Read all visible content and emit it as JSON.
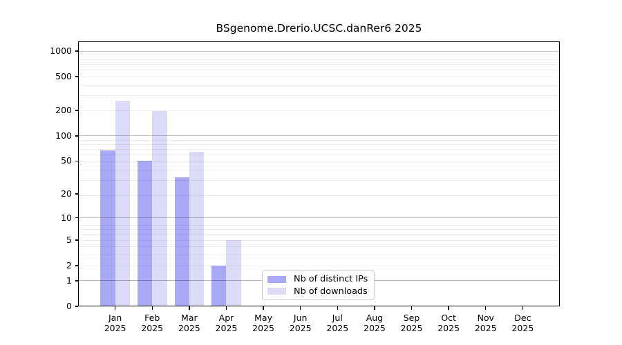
{
  "chart_data": {
    "type": "bar",
    "title": "BSgenome.Drerio.UCSC.danRer6 2025",
    "year": "2025",
    "categories": [
      "Jan",
      "Feb",
      "Mar",
      "Apr",
      "May",
      "Jun",
      "Jul",
      "Aug",
      "Sep",
      "Oct",
      "Nov",
      "Dec"
    ],
    "series": [
      {
        "key": "distinct-ips",
        "name": "Nb of distinct IPs",
        "color": "#a9a9f7",
        "values": [
          67,
          50,
          32,
          2,
          0,
          0,
          0,
          0,
          0,
          0,
          0,
          0
        ]
      },
      {
        "key": "downloads",
        "name": "Nb of downloads",
        "color": "#dcdcf9",
        "values": [
          258,
          198,
          64,
          5,
          0,
          0,
          0,
          0,
          0,
          0,
          0,
          0
        ]
      }
    ],
    "yticks": [
      0,
      1,
      2,
      5,
      10,
      20,
      50,
      100,
      200,
      500,
      1000
    ],
    "yscale": "log10(value+1)",
    "ylim": [
      0,
      1285
    ],
    "xlabel": "",
    "ylabel": "",
    "grid": true,
    "legend_position": "inside-bottom-center"
  },
  "colors": {
    "background": "#ffffff",
    "axis": "#000000",
    "major_grid": "#c8c8c8",
    "minor_grid": "#ededed",
    "legend_border": "#cccccc"
  }
}
